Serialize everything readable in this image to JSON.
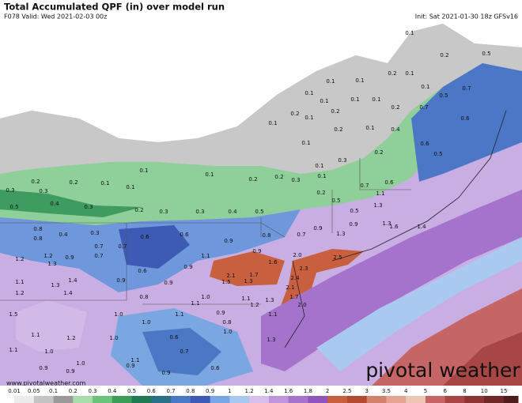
{
  "header": {
    "title": "Total Accumulated QPF (in) over model run",
    "valid": "F078 Valid: Wed 2021-02-03 00z",
    "init": "Init: Sat 2021-01-30 18z GFSv16"
  },
  "map": {
    "labels": [
      "0.1",
      "0.2",
      "0.5",
      "0.2",
      "0.1",
      "0.1",
      "0.1",
      "0.1",
      "0.7",
      "0.5",
      "0.1",
      "0.1",
      "0.1",
      "0.1",
      "0.2",
      "0.7",
      "0.6",
      "0.2",
      "0.1",
      "0.2",
      "0.1",
      "0.2",
      "0.1",
      "0.4",
      "0.6",
      "0.5",
      "0.1",
      "0.3",
      "0.2",
      "0.1",
      "0.1",
      "0.1",
      "0.1",
      "0.2",
      "0.2",
      "0.1",
      "0.2",
      "0.2",
      "0.3",
      "0.3",
      "0.3",
      "0.1",
      "0.2",
      "0.7",
      "0.6",
      "0.5",
      "0.4",
      "0.3",
      "0.2",
      "0.3",
      "0.3",
      "0.4",
      "0.5",
      "0.5",
      "1.1",
      "1.3",
      "0.5",
      "0.8",
      "0.4",
      "0.3",
      "0.9",
      "1.3",
      "0.9",
      "1.4",
      "1.6",
      "0.8",
      "0.6",
      "0.6",
      "0.9",
      "0.8",
      "0.7",
      "1.3",
      "1.2",
      "1.2",
      "0.9",
      "0.7",
      "0.7",
      "1.3",
      "0.7",
      "1.1",
      "0.9",
      "2.0",
      "2.5",
      "1.6",
      "0.6",
      "0.9",
      "2.3",
      "1.7",
      "2.1",
      "1.1",
      "1.3",
      "1.4",
      "0.9",
      "1.3",
      "1.5",
      "2.4",
      "0.9",
      "1.2",
      "1.4",
      "2.1",
      "0.8",
      "1.0",
      "1.1",
      "1.3",
      "1.7",
      "1.1",
      "1.2",
      "2.0",
      "1.5",
      "1.0",
      "1.1",
      "0.9",
      "0.8",
      "1.1",
      "1.0",
      "1.0",
      "1.1",
      "1.2",
      "1.0",
      "0.6",
      "1.3",
      "1.1",
      "1.0",
      "0.7",
      "1.0",
      "1.1",
      "0.9",
      "0.9",
      "0.9",
      "0.9",
      "0.6"
    ]
  },
  "legend": {
    "ticks": [
      "0.01",
      "0.05",
      "0.1",
      "0.2",
      "0.3",
      "0.4",
      "0.5",
      "0.6",
      "0.7",
      "0.8",
      "0.9",
      "1",
      "1.2",
      "1.4",
      "1.6",
      "1.8",
      "2",
      "2.5",
      "3",
      "3.5",
      "4",
      "5",
      "6",
      "8",
      "10",
      "15"
    ],
    "colors": [
      "#ececec",
      "#c4c4c4",
      "#9a9a9a",
      "#a8dcaa",
      "#6cc27a",
      "#3a9e5a",
      "#1f7a55",
      "#2a6f86",
      "#4b78c4",
      "#3d5bb4",
      "#7aa6e2",
      "#a9c9f0",
      "#d6bfea",
      "#bf95dc",
      "#a673cc",
      "#9055bb",
      "#c8603f",
      "#b44a32",
      "#d1836f",
      "#e3a592",
      "#ecc6b6",
      "#c56565",
      "#a84545",
      "#8c3434",
      "#6e2626",
      "#4e1c1c"
    ]
  },
  "footer": {
    "url": "www.pivotalweather.com",
    "brand": "pivotal weather"
  }
}
